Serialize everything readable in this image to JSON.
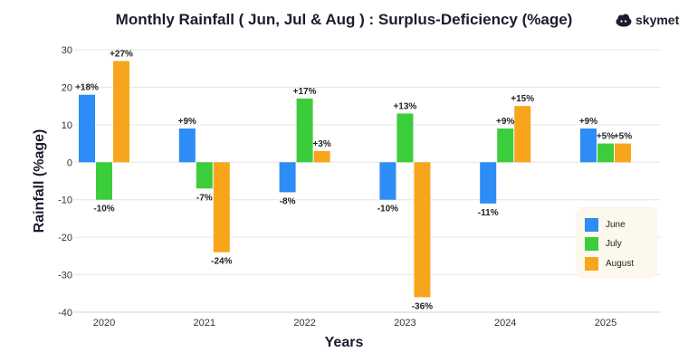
{
  "header": {
    "title": "Monthly Rainfall ( Jun, Jul & Aug ) : Surplus-Deficiency (%age)"
  },
  "logo": {
    "text": "skymet",
    "icon": "cloud-face-icon"
  },
  "colors": {
    "June": "#2d8cf5",
    "July": "#3ccd3c",
    "August": "#f9a51c",
    "text": "#1c1c2e",
    "grid": "#e6e6e6"
  },
  "chart_data": {
    "type": "bar",
    "title": "Monthly Rainfall ( Jun, Jul & Aug ) : Surplus-Deficiency (%age)",
    "xlabel": "Years",
    "ylabel": "Rainfall (%age)",
    "ylim": [
      -40,
      30
    ],
    "yticks": [
      30,
      20,
      10,
      0,
      -10,
      -20,
      -30,
      -40
    ],
    "categories": [
      "2020",
      "2021",
      "2022",
      "2023",
      "2024",
      "2025"
    ],
    "series": [
      {
        "name": "June",
        "values": [
          18,
          9,
          -8,
          -10,
          -11,
          9
        ],
        "labels": [
          "+18%",
          "+9%",
          "-8%",
          "-10%",
          "-11%",
          "+9%"
        ]
      },
      {
        "name": "July",
        "values": [
          -10,
          -7,
          17,
          13,
          9,
          5
        ],
        "labels": [
          "-10%",
          "-7%",
          "+17%",
          "+13%",
          "+9%",
          "+5%"
        ]
      },
      {
        "name": "August",
        "values": [
          27,
          -24,
          3,
          -36,
          15,
          5
        ],
        "labels": [
          "+27%",
          "-24%",
          "+3%",
          "-36%",
          "+15%",
          "+5%"
        ]
      }
    ],
    "legend": {
      "position": "right",
      "entries": [
        "June",
        "July",
        "August"
      ]
    },
    "grid": true
  }
}
